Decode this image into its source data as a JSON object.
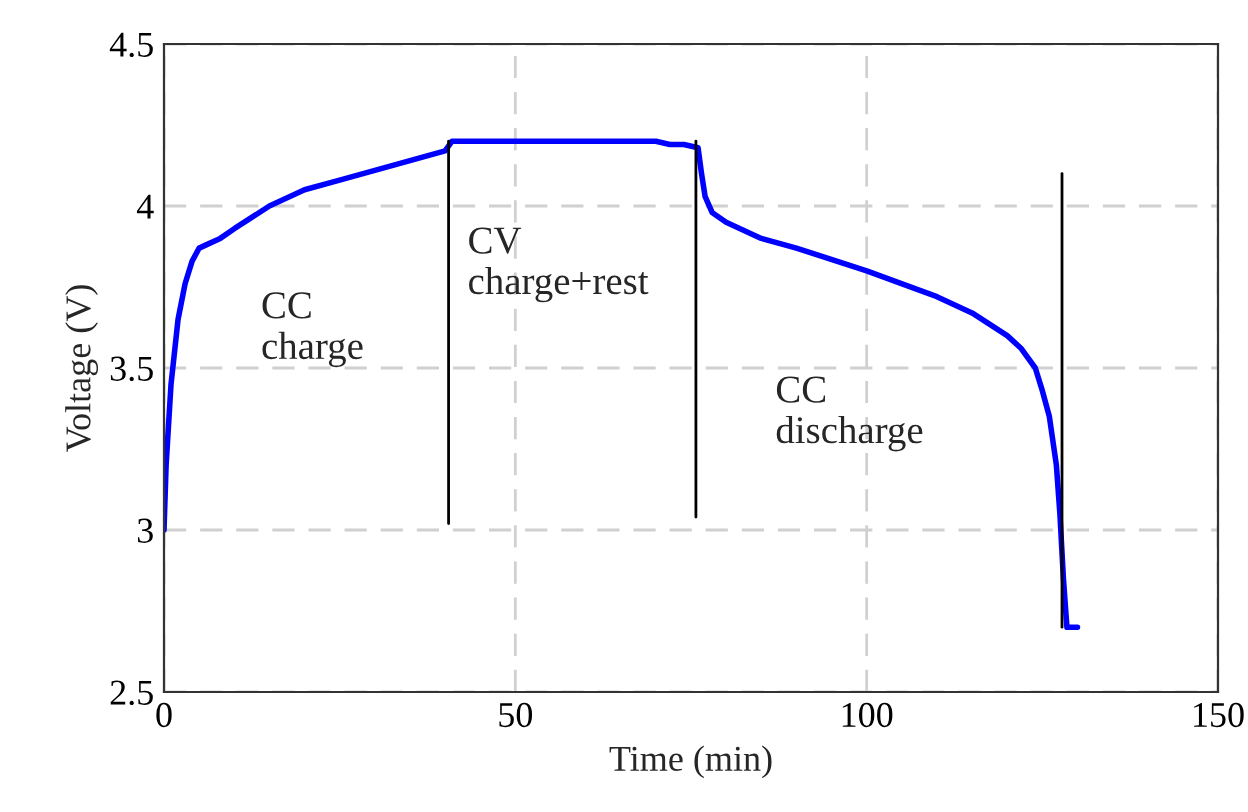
{
  "chart_data": {
    "type": "line",
    "xlabel": "Time (min)",
    "ylabel": "Voltage (V)",
    "xlim": [
      0,
      150
    ],
    "xticks": [
      0,
      50,
      100,
      150
    ],
    "ylim": [
      2.5,
      4.5
    ],
    "yticks": [
      2.5,
      3,
      3.5,
      4,
      4.5
    ],
    "grid": true,
    "series": [
      {
        "color": "#0000ff",
        "x": [
          0,
          0.3,
          1,
          2,
          3,
          4,
          5,
          6,
          8,
          10,
          15,
          20,
          25,
          30,
          35,
          40,
          41,
          50,
          60,
          70,
          72,
          74,
          76,
          76.5,
          77,
          78,
          80,
          85,
          90,
          100,
          110,
          115,
          120,
          122,
          124,
          125,
          126,
          127,
          127.5,
          128,
          128.5,
          129,
          130
        ],
        "values": [
          3.0,
          3.2,
          3.45,
          3.65,
          3.76,
          3.83,
          3.87,
          3.88,
          3.9,
          3.93,
          4.0,
          4.05,
          4.08,
          4.11,
          4.14,
          4.17,
          4.2,
          4.2,
          4.2,
          4.2,
          4.19,
          4.19,
          4.18,
          4.1,
          4.03,
          3.98,
          3.95,
          3.9,
          3.87,
          3.8,
          3.72,
          3.67,
          3.6,
          3.56,
          3.5,
          3.43,
          3.35,
          3.2,
          3.05,
          2.85,
          2.7,
          2.7,
          2.7
        ]
      },
      {
        "color": "#000000",
        "x": [
          40.5,
          40.5
        ],
        "values": [
          3.02,
          4.2
        ]
      },
      {
        "color": "#000000",
        "x": [
          75.7,
          75.7
        ],
        "values": [
          3.04,
          4.2
        ]
      },
      {
        "color": "#000000",
        "x": [
          127.8,
          127.8
        ],
        "values": [
          2.7,
          4.1
        ]
      }
    ],
    "annotations": [
      "CC\ncharge",
      "CV\ncharge+rest",
      "CC\ndischarge"
    ]
  }
}
